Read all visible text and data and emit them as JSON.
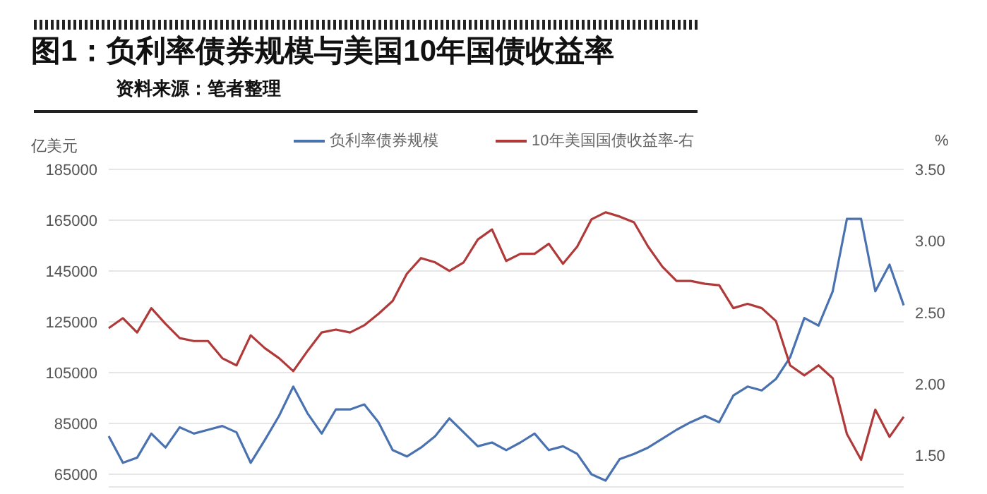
{
  "chart_data": {
    "type": "line",
    "title": "图1：负利率债券规模与美国10年国债收益率",
    "subtitle": "资料来源：笔者整理",
    "ylabel": "亿美元",
    "y2label": "%",
    "categories": [
      null,
      null,
      null,
      null,
      null,
      null,
      null,
      null,
      null,
      null,
      null,
      null,
      null,
      null,
      null,
      null,
      null,
      null,
      null,
      null,
      null,
      null,
      null,
      null,
      null,
      null,
      null,
      null,
      null,
      null,
      null,
      null,
      null,
      null,
      null,
      null,
      null,
      null,
      null,
      null,
      null,
      null,
      null,
      null,
      null,
      null,
      null,
      null,
      null,
      null,
      null,
      null,
      null,
      null,
      null,
      null,
      null
    ],
    "series": [
      {
        "name": "负利率债券规模",
        "color": "#4a72b0",
        "values": [
          80000,
          69500,
          71500,
          81000,
          75500,
          83500,
          81000,
          82500,
          84000,
          81500,
          69500,
          78500,
          88000,
          99500,
          89000,
          81000,
          90500,
          90500,
          92500,
          85500,
          74500,
          72000,
          75500,
          80000,
          87000,
          81500,
          76000,
          77500,
          74500,
          77500,
          81000,
          74500,
          76000,
          73000,
          65000,
          62500,
          71000,
          73000,
          75500,
          79000,
          82500,
          85500,
          88000,
          85500,
          96000,
          99500,
          98000,
          102500,
          111000,
          126500,
          123500,
          137000,
          165500,
          165500,
          137000,
          147500,
          131500
        ]
      },
      {
        "name": "10年美国国债收益率-右",
        "color": "#b03a3a",
        "axis": "y2",
        "values": [
          2.39,
          2.46,
          2.36,
          2.53,
          2.42,
          2.32,
          2.3,
          2.3,
          2.18,
          2.13,
          2.34,
          2.25,
          2.18,
          2.09,
          2.23,
          2.36,
          2.38,
          2.36,
          2.41,
          2.49,
          2.58,
          2.77,
          2.88,
          2.85,
          2.79,
          2.85,
          3.01,
          3.08,
          2.86,
          2.91,
          2.91,
          2.98,
          2.84,
          2.96,
          3.15,
          3.2,
          3.17,
          3.13,
          2.96,
          2.82,
          2.72,
          2.72,
          2.7,
          2.69,
          2.53,
          2.56,
          2.53,
          2.44,
          2.13,
          2.06,
          2.13,
          2.04,
          1.65,
          1.47,
          1.82,
          1.63,
          1.77
        ]
      }
    ],
    "ylim": [
      60000,
      185000
    ],
    "yticks": [
      65000,
      85000,
      105000,
      125000,
      145000,
      165000,
      185000
    ],
    "y2lim": [
      1.28,
      3.5
    ],
    "y2ticks": [
      {
        "value": 1.5,
        "label": "1.50"
      },
      {
        "value": 2,
        "label": "2.00"
      },
      {
        "value": 2.5,
        "label": "2.50"
      },
      {
        "value": 3,
        "label": "3.00"
      },
      {
        "value": 3.5,
        "label": "3.50"
      }
    ],
    "grid": "y",
    "legend": "top",
    "marker": "none",
    "line_style": "solid",
    "tick_labels": "y"
  }
}
